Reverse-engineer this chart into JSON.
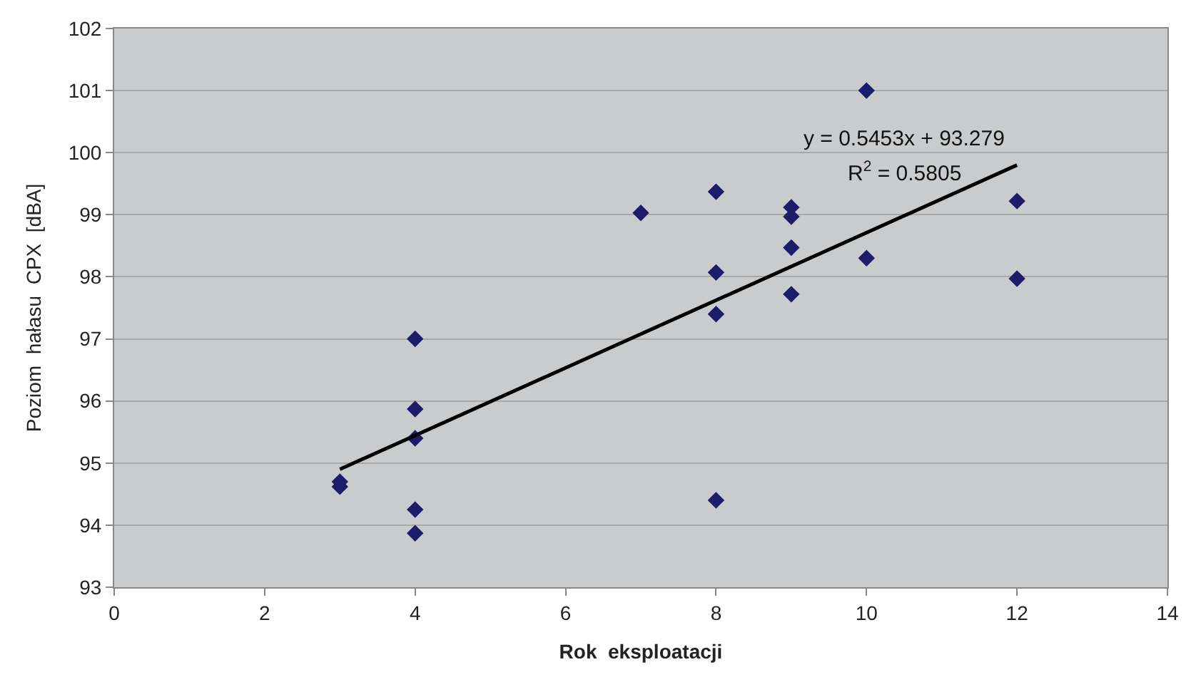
{
  "chart_data": {
    "type": "scatter",
    "xlabel": "Rok  eksploatacji",
    "ylabel": "Poziom  hałasu  CPX  [dBA]",
    "xlim": [
      0,
      14
    ],
    "xticks": [
      0,
      2,
      4,
      6,
      8,
      10,
      12,
      14
    ],
    "ylim": [
      93,
      102
    ],
    "yticks": [
      93,
      94,
      95,
      96,
      97,
      98,
      99,
      100,
      101,
      102
    ],
    "grid": "y",
    "series": [
      {
        "marker": "diamond",
        "color": "#1c1c6b",
        "x": [
          3,
          3,
          4,
          4,
          4,
          4,
          4,
          7,
          8,
          8,
          8,
          8,
          9,
          9,
          9,
          9,
          10,
          10,
          12,
          12
        ],
        "values": [
          94.7,
          94.62,
          97.0,
          95.87,
          95.4,
          94.25,
          93.87,
          99.03,
          99.37,
          98.07,
          97.4,
          94.4,
          99.12,
          98.97,
          98.47,
          97.72,
          101.0,
          98.3,
          99.22,
          97.97
        ]
      },
      {
        "type": "line",
        "marker": "none",
        "color": "#000000",
        "x": [
          3,
          12
        ],
        "values": [
          94.9,
          99.8
        ]
      }
    ],
    "annotations": [
      "y = 0.5453x + 93.279",
      "R$^{2}$ = 0.5805"
    ]
  }
}
